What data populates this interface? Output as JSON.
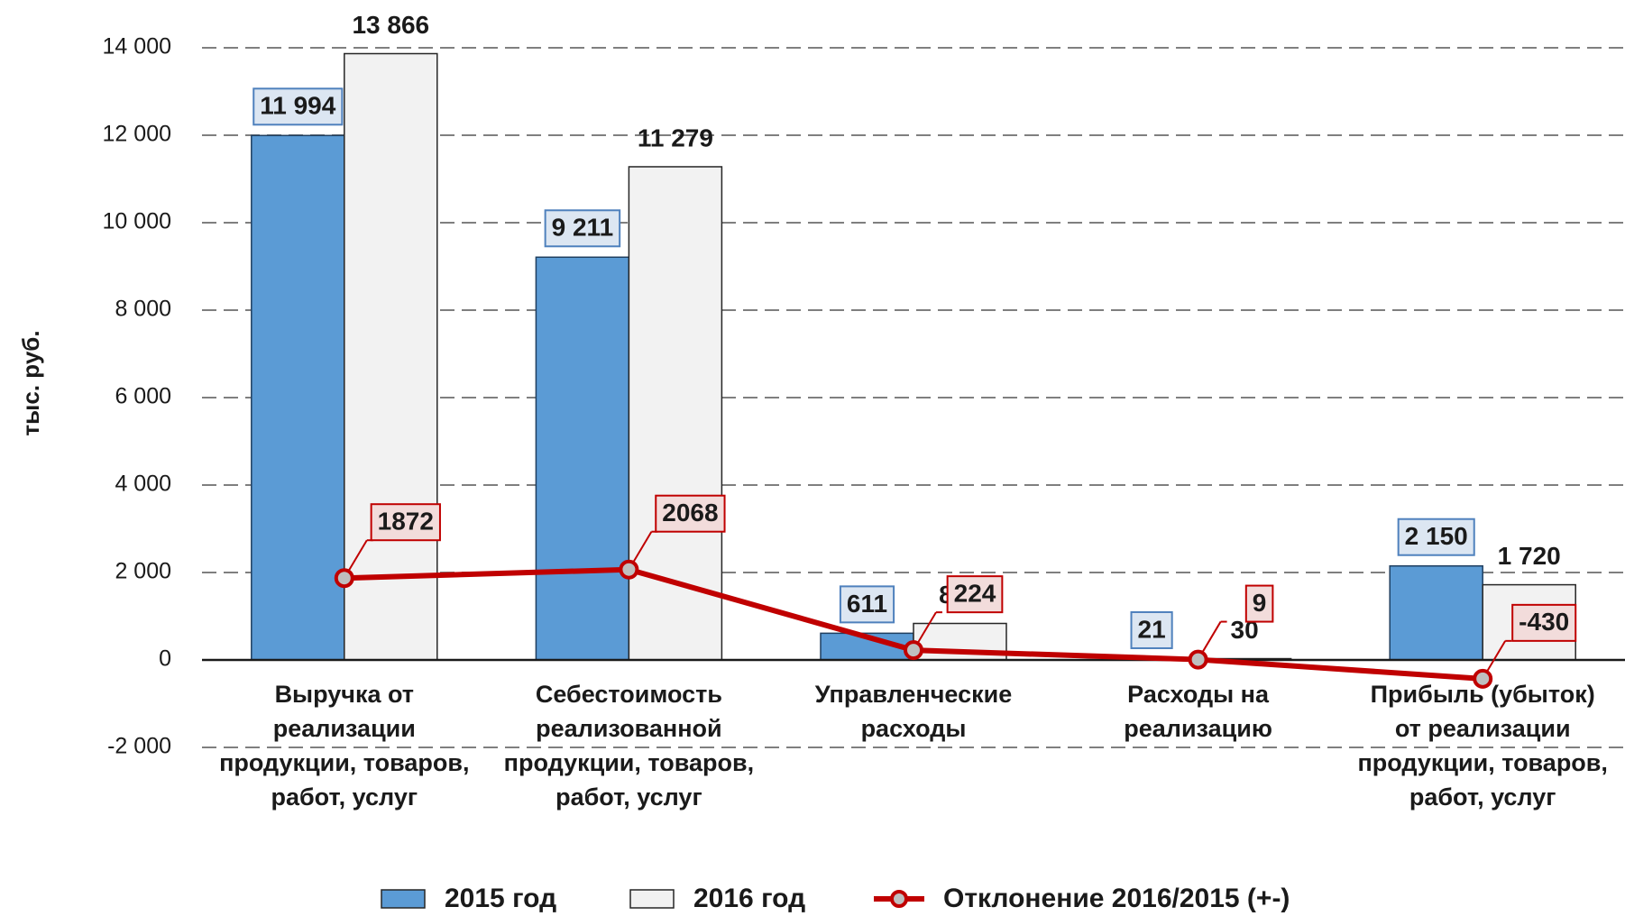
{
  "chart_data": {
    "type": "bar",
    "y_label": "тыс. руб.",
    "categories": [
      [
        "Выручка от",
        "реализации",
        "продукции, товаров,",
        "работ, услуг"
      ],
      [
        "Себестоимость",
        "реализованной",
        "продукции, товаров,",
        "работ, услуг"
      ],
      [
        "Управленческие",
        "расходы"
      ],
      [
        "Расходы на",
        "реализацию"
      ],
      [
        "Прибыль (убыток)",
        "от реализации",
        "продукции, товаров,",
        "работ, услуг"
      ]
    ],
    "series": [
      {
        "name": "2015 год",
        "color": "#5b9bd5",
        "values": [
          11994,
          9211,
          611,
          21,
          2150
        ],
        "value_labels": [
          "11 994",
          "9 211",
          "611",
          "21",
          "2 150"
        ]
      },
      {
        "name": "2016 год",
        "color": "#f2f2f2",
        "values": [
          13866,
          11279,
          835,
          30,
          1720
        ],
        "value_labels": [
          "13 866",
          "11 279",
          "835",
          "30",
          "1 720"
        ]
      },
      {
        "name": "Отклонение 2016/2015 (+-)",
        "type": "line",
        "color": "#c00000",
        "values": [
          1872,
          2068,
          224,
          9,
          -430
        ]
      }
    ],
    "ylim": [
      -2000,
      14000
    ],
    "yticks": [
      {
        "value": -2000,
        "label": "-2 000"
      },
      0,
      {
        "value": 2000,
        "label": "2 000"
      },
      {
        "value": 4000,
        "label": "4 000"
      },
      {
        "value": 6000,
        "label": "6 000"
      },
      {
        "value": 8000,
        "label": "8 000"
      },
      {
        "value": 10000,
        "label": "10 000"
      },
      {
        "value": 12000,
        "label": "12 000"
      },
      {
        "value": 14000,
        "label": "14 000"
      }
    ],
    "grid": true
  }
}
